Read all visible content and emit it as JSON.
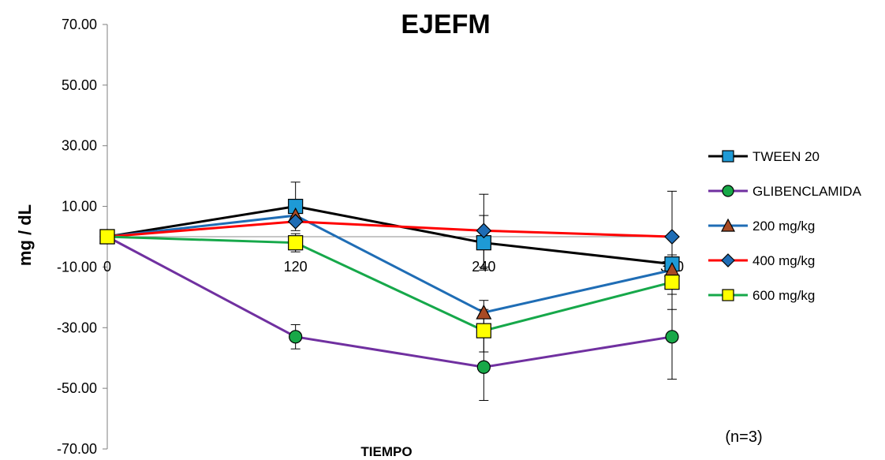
{
  "chart_data": {
    "type": "line",
    "title": "EJEFM",
    "xlabel": "TIEMPO",
    "ylabel": "mg / dL",
    "note": "(n=3)",
    "x": [
      0,
      120,
      240,
      360
    ],
    "x_tick_labels": [
      "0",
      "120",
      "240",
      "360"
    ],
    "ylim": [
      -70,
      70
    ],
    "y_ticks": [
      70,
      50,
      30,
      10,
      -10,
      -30,
      -50,
      -70
    ],
    "y_tick_labels": [
      "70.00",
      "50.00",
      "30.00",
      "10.00",
      "-10.00",
      "-30.00",
      "-50.00",
      "-70.00"
    ],
    "grid": false,
    "zero_line": true,
    "legend_position": "right",
    "series": [
      {
        "name": "TWEEN 20",
        "line_color": "#000000",
        "marker": "square",
        "marker_color": "#1e9ad6",
        "values": [
          0,
          10,
          -2,
          -9
        ],
        "errors": [
          0,
          8,
          9,
          0
        ]
      },
      {
        "name": "GLIBENCLAMIDA",
        "line_color": "#7030a0",
        "marker": "circle",
        "marker_color": "#18a848",
        "values": [
          0,
          -33,
          -43,
          -33
        ],
        "errors": [
          0,
          4,
          11,
          14
        ]
      },
      {
        "name": "200 mg/kg",
        "line_color": "#1f6db5",
        "marker": "triangle",
        "marker_color": "#a84a24",
        "values": [
          0,
          7,
          -25,
          -11
        ],
        "errors": [
          0,
          0,
          4,
          0
        ]
      },
      {
        "name": "400 mg/kg",
        "line_color": "#ff0000",
        "marker": "diamond",
        "marker_color": "#1f6db5",
        "values": [
          0,
          5,
          2,
          0
        ],
        "errors": [
          0,
          0,
          12,
          15
        ]
      },
      {
        "name": "600 mg/kg",
        "line_color": "#16a84a",
        "marker": "square",
        "marker_color": "#ffff00",
        "values": [
          0,
          -2,
          -31,
          -15
        ],
        "errors": [
          0,
          3,
          7,
          9
        ]
      }
    ]
  }
}
